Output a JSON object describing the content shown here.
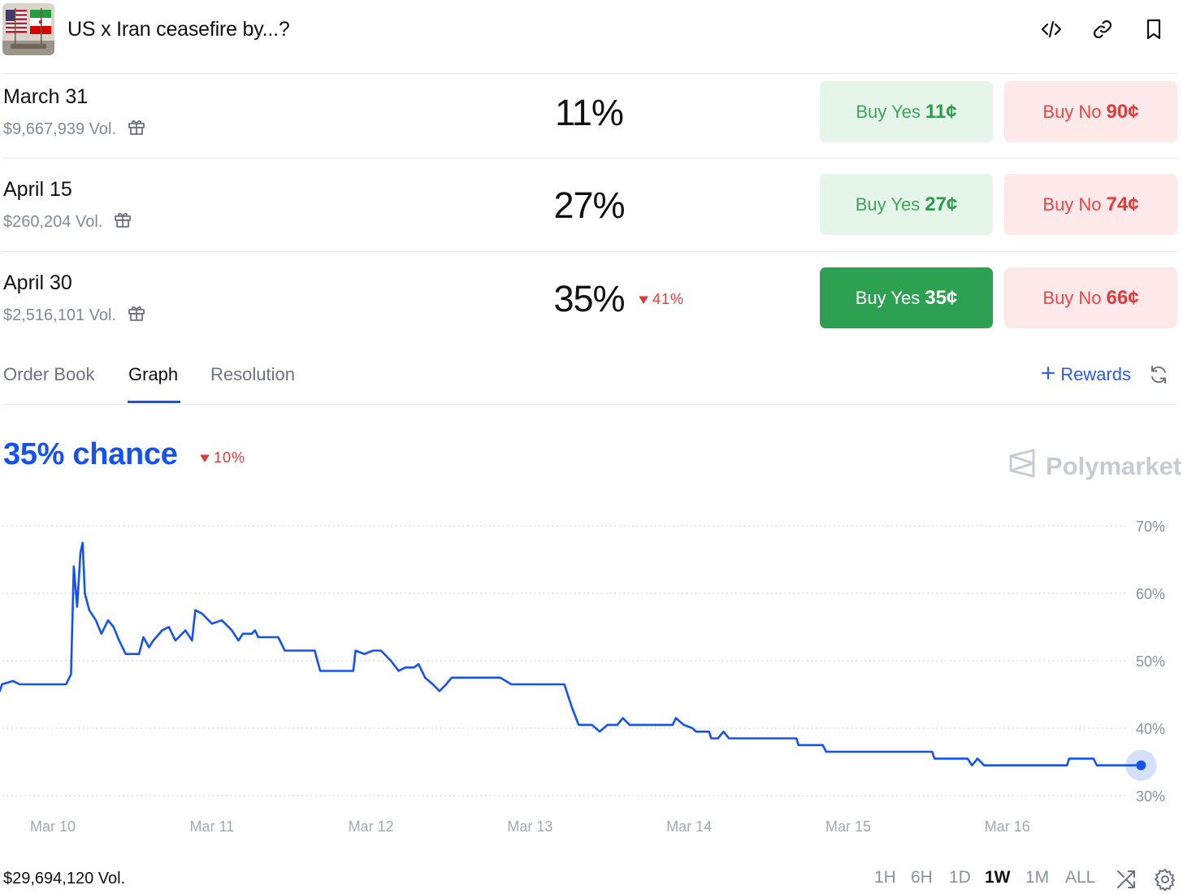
{
  "header": {
    "title": "US x Iran ceasefire by...?",
    "icons": [
      "embed-code-icon",
      "link-icon",
      "bookmark-icon"
    ]
  },
  "markets": [
    {
      "name": "March 31",
      "volume": "$9,667,939 Vol.",
      "probability": "11%",
      "delta": "",
      "yes_label": "Buy Yes",
      "yes_price": "11¢",
      "no_label": "Buy No",
      "no_price": "90¢",
      "selected": false
    },
    {
      "name": "April 15",
      "volume": "$260,204 Vol.",
      "probability": "27%",
      "delta": "",
      "yes_label": "Buy Yes",
      "yes_price": "27¢",
      "no_label": "Buy No",
      "no_price": "74¢",
      "selected": false
    },
    {
      "name": "April 30",
      "volume": "$2,516,101 Vol.",
      "probability": "35%",
      "delta": "41%",
      "yes_label": "Buy Yes",
      "yes_price": "35¢",
      "no_label": "Buy No",
      "no_price": "66¢",
      "selected": true
    }
  ],
  "tabs": [
    {
      "label": "Order Book",
      "active": false
    },
    {
      "label": "Graph",
      "active": true
    },
    {
      "label": "Resolution",
      "active": false
    }
  ],
  "rewards_label": "Rewards",
  "chart_header": {
    "chance": "35% chance",
    "delta": "10%",
    "watermark": "Polymarket"
  },
  "chart_data": {
    "type": "line",
    "title": "",
    "xlabel": "",
    "ylabel": "",
    "ylim": [
      29,
      72
    ],
    "y_ticks": [
      "70%",
      "60%",
      "50%",
      "40%",
      "30%"
    ],
    "x_ticks": [
      "Mar 10",
      "Mar 11",
      "Mar 12",
      "Mar 13",
      "Mar 14",
      "Mar 15",
      "Mar 16"
    ],
    "grid": true,
    "series": [
      {
        "color": "#1652f0",
        "points": [
          [
            "Mar 9 16:00",
            45.5
          ],
          [
            "Mar 9 16:20",
            46.5
          ],
          [
            "Mar 9 18:00",
            47
          ],
          [
            "Mar 9 19:00",
            46.5
          ],
          [
            "Mar 10 02:00",
            46.5
          ],
          [
            "Mar 10 02:45",
            48
          ],
          [
            "Mar 10 03:10",
            64
          ],
          [
            "Mar 10 03:40",
            58
          ],
          [
            "Mar 10 04:10",
            66
          ],
          [
            "Mar 10 04:30",
            67.5
          ],
          [
            "Mar 10 04:50",
            60
          ],
          [
            "Mar 10 05:30",
            57.5
          ],
          [
            "Mar 10 06:30",
            56
          ],
          [
            "Mar 10 07:20",
            54
          ],
          [
            "Mar 10 08:20",
            56
          ],
          [
            "Mar 10 09:10",
            55
          ],
          [
            "Mar 10 10:00",
            53
          ],
          [
            "Mar 10 11:00",
            51
          ],
          [
            "Mar 10 13:00",
            51
          ],
          [
            "Mar 10 13:40",
            53.5
          ],
          [
            "Mar 10 14:30",
            52
          ],
          [
            "Mar 10 15:10",
            53
          ],
          [
            "Mar 10 16:30",
            54.5
          ],
          [
            "Mar 10 17:30",
            55
          ],
          [
            "Mar 10 18:30",
            53
          ],
          [
            "Mar 10 20:00",
            54.5
          ],
          [
            "Mar 10 21:00",
            53
          ],
          [
            "Mar 10 21:30",
            57.5
          ],
          [
            "Mar 10 22:30",
            57
          ],
          [
            "Mar 11 00:00",
            55.5
          ],
          [
            "Mar 11 01:30",
            56
          ],
          [
            "Mar 11 03:00",
            54.5
          ],
          [
            "Mar 11 04:00",
            53
          ],
          [
            "Mar 11 04:40",
            54
          ],
          [
            "Mar 11 06:00",
            54
          ],
          [
            "Mar 11 06:30",
            54.5
          ],
          [
            "Mar 11 07:00",
            53.5
          ],
          [
            "Mar 11 10:00",
            53.5
          ],
          [
            "Mar 11 11:00",
            51.5
          ],
          [
            "Mar 11 15:30",
            51.5
          ],
          [
            "Mar 11 16:20",
            48.5
          ],
          [
            "Mar 11 21:20",
            48.5
          ],
          [
            "Mar 11 21:40",
            51.5
          ],
          [
            "Mar 11 23:00",
            51
          ],
          [
            "Mar 12 00:20",
            51.5
          ],
          [
            "Mar 12 01:30",
            51.5
          ],
          [
            "Mar 12 03:00",
            50
          ],
          [
            "Mar 12 04:10",
            48.5
          ],
          [
            "Mar 12 05:10",
            49
          ],
          [
            "Mar 12 06:30",
            49
          ],
          [
            "Mar 12 07:10",
            49.5
          ],
          [
            "Mar 12 08:10",
            47.5
          ],
          [
            "Mar 12 09:20",
            46.5
          ],
          [
            "Mar 12 10:20",
            45.5
          ],
          [
            "Mar 12 11:20",
            46.5
          ],
          [
            "Mar 12 12:10",
            47.5
          ],
          [
            "Mar 12 19:30",
            47.5
          ],
          [
            "Mar 12 21:10",
            46.5
          ],
          [
            "Mar 12 23:50",
            46.5
          ],
          [
            "Mar 13 00:30",
            46.5
          ],
          [
            "Mar 13 05:10",
            46.5
          ],
          [
            "Mar 13 06:20",
            43
          ],
          [
            "Mar 13 07:20",
            40.5
          ],
          [
            "Mar 13 09:20",
            40.5
          ],
          [
            "Mar 13 10:30",
            39.5
          ],
          [
            "Mar 13 11:40",
            40.5
          ],
          [
            "Mar 13 13:10",
            40.5
          ],
          [
            "Mar 13 14:00",
            41.5
          ],
          [
            "Mar 13 15:00",
            40.5
          ],
          [
            "Mar 13 21:30",
            40.5
          ],
          [
            "Mar 13 22:00",
            41.5
          ],
          [
            "Mar 13 23:10",
            40.5
          ],
          [
            "Mar 14 00:30",
            40
          ],
          [
            "Mar 14 01:00",
            39.5
          ],
          [
            "Mar 14 03:00",
            39.5
          ],
          [
            "Mar 14 03:20",
            38.5
          ],
          [
            "Mar 14 04:20",
            38.5
          ],
          [
            "Mar 14 05:10",
            39.5
          ],
          [
            "Mar 14 06:00",
            38.5
          ],
          [
            "Mar 14 16:10",
            38.5
          ],
          [
            "Mar 14 16:30",
            37.5
          ],
          [
            "Mar 14 20:10",
            37.5
          ],
          [
            "Mar 14 20:40",
            36.5
          ],
          [
            "Mar 15 12:40",
            36.5
          ],
          [
            "Mar 15 13:00",
            35.5
          ],
          [
            "Mar 15 18:00",
            35.5
          ],
          [
            "Mar 15 18:40",
            34.5
          ],
          [
            "Mar 15 19:30",
            35.5
          ],
          [
            "Mar 15 20:30",
            34.5
          ],
          [
            "Mar 16 09:00",
            34.5
          ],
          [
            "Mar 16 09:20",
            35.5
          ],
          [
            "Mar 16 13:00",
            35.5
          ],
          [
            "Mar 16 13:30",
            34.5
          ],
          [
            "Mar 16 20:10",
            34.5
          ]
        ]
      }
    ]
  },
  "footer": {
    "total_volume": "$29,694,120 Vol.",
    "ranges": [
      "1H",
      "6H",
      "1D",
      "1W",
      "1M",
      "ALL"
    ],
    "active_range": "1W"
  }
}
